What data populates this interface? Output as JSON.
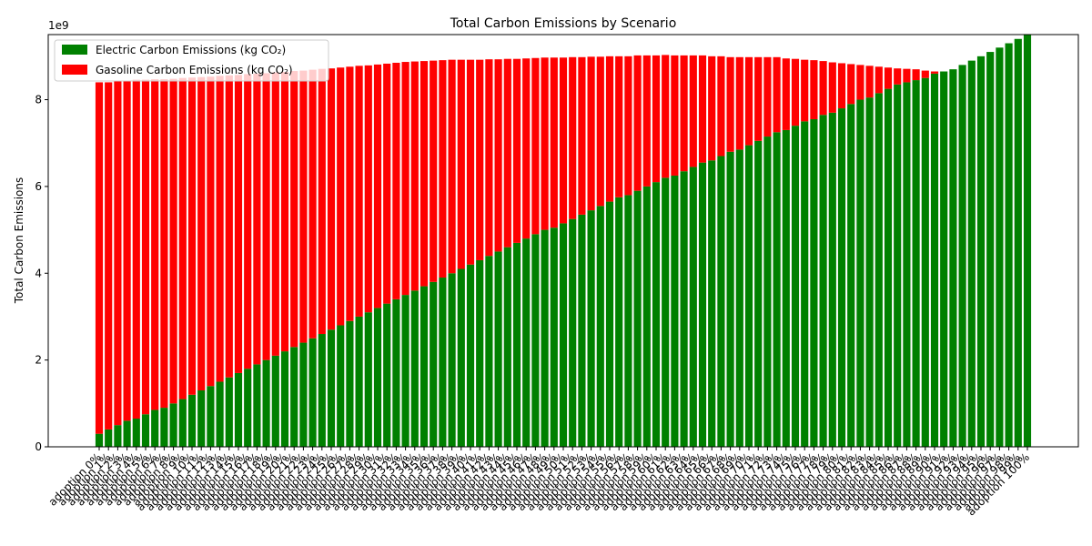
{
  "chart_data": {
    "type": "bar",
    "stacked": true,
    "title": "Total Carbon Emissions by Scenario",
    "xlabel": "",
    "ylabel": "Total Carbon Emissions",
    "y_offset_text": "1e9",
    "ylim": [
      0,
      9500000000
    ],
    "y_ticks": [
      0,
      2000000000,
      4000000000,
      6000000000,
      8000000000
    ],
    "y_tick_labels": [
      "0",
      "2",
      "4",
      "6",
      "8"
    ],
    "legend_position": "upper-left",
    "grid": false,
    "categories": [
      "adoption 0%",
      "adoption 1%",
      "adoption 2%",
      "adoption 3%",
      "adoption 4%",
      "adoption 5%",
      "adoption 6%",
      "adoption 7%",
      "adoption 8%",
      "adoption 9%",
      "adoption 10%",
      "adoption 11%",
      "adoption 12%",
      "adoption 13%",
      "adoption 14%",
      "adoption 15%",
      "adoption 16%",
      "adoption 17%",
      "adoption 18%",
      "adoption 19%",
      "adoption 20%",
      "adoption 21%",
      "adoption 22%",
      "adoption 23%",
      "adoption 24%",
      "adoption 25%",
      "adoption 26%",
      "adoption 27%",
      "adoption 28%",
      "adoption 29%",
      "adoption 30%",
      "adoption 31%",
      "adoption 32%",
      "adoption 33%",
      "adoption 34%",
      "adoption 35%",
      "adoption 36%",
      "adoption 37%",
      "adoption 38%",
      "adoption 39%",
      "adoption 40%",
      "adoption 41%",
      "adoption 42%",
      "adoption 43%",
      "adoption 44%",
      "adoption 45%",
      "adoption 46%",
      "adoption 47%",
      "adoption 48%",
      "adoption 49%",
      "adoption 50%",
      "adoption 51%",
      "adoption 52%",
      "adoption 53%",
      "adoption 54%",
      "adoption 55%",
      "adoption 56%",
      "adoption 57%",
      "adoption 58%",
      "adoption 59%",
      "adoption 60%",
      "adoption 61%",
      "adoption 62%",
      "adoption 63%",
      "adoption 64%",
      "adoption 65%",
      "adoption 66%",
      "adoption 67%",
      "adoption 68%",
      "adoption 69%",
      "adoption 70%",
      "adoption 71%",
      "adoption 72%",
      "adoption 73%",
      "adoption 74%",
      "adoption 75%",
      "adoption 76%",
      "adoption 77%",
      "adoption 78%",
      "adoption 79%",
      "adoption 80%",
      "adoption 81%",
      "adoption 82%",
      "adoption 83%",
      "adoption 84%",
      "adoption 85%",
      "adoption 86%",
      "adoption 87%",
      "adoption 88%",
      "adoption 89%",
      "adoption 90%",
      "adoption 91%",
      "adoption 92%",
      "adoption 93%",
      "adoption 94%",
      "adoption 95%",
      "adoption 96%",
      "adoption 97%",
      "adoption 98%",
      "adoption 99%",
      "adoption 100%"
    ],
    "series": [
      {
        "name": "Electric Carbon Emissions (kg CO₂)",
        "color": "#008000",
        "values": [
          300000000,
          400000000,
          500000000,
          600000000,
          650000000,
          750000000,
          850000000,
          900000000,
          1000000000,
          1100000000,
          1200000000,
          1300000000,
          1400000000,
          1500000000,
          1600000000,
          1700000000,
          1800000000,
          1900000000,
          2000000000,
          2100000000,
          2200000000,
          2300000000,
          2400000000,
          2500000000,
          2600000000,
          2700000000,
          2800000000,
          2900000000,
          3000000000,
          3100000000,
          3200000000,
          3300000000,
          3400000000,
          3500000000,
          3600000000,
          3700000000,
          3800000000,
          3900000000,
          4000000000,
          4100000000,
          4200000000,
          4300000000,
          4400000000,
          4500000000,
          4600000000,
          4700000000,
          4800000000,
          4900000000,
          5000000000,
          5050000000,
          5150000000,
          5250000000,
          5350000000,
          5450000000,
          5550000000,
          5650000000,
          5750000000,
          5800000000,
          5900000000,
          6000000000,
          6100000000,
          6200000000,
          6250000000,
          6350000000,
          6450000000,
          6550000000,
          6600000000,
          6700000000,
          6800000000,
          6850000000,
          6950000000,
          7050000000,
          7150000000,
          7250000000,
          7300000000,
          7400000000,
          7500000000,
          7550000000,
          7650000000,
          7700000000,
          7800000000,
          7900000000,
          8000000000,
          8050000000,
          8150000000,
          8250000000,
          8350000000,
          8400000000,
          8450000000,
          8500000000,
          8600000000,
          8650000000,
          8700000000,
          8800000000,
          8900000000,
          9000000000,
          9100000000,
          9200000000,
          9300000000,
          9400000000,
          9500000000
        ]
      },
      {
        "name": "Gasoline Carbon Emissions (kg CO₂)",
        "color": "#ff0000",
        "values": [
          8100000000,
          8000000000,
          7920000000,
          7840000000,
          7810000000,
          7710000000,
          7620000000,
          7570000000,
          7480000000,
          7400000000,
          7310000000,
          7220000000,
          7130000000,
          7050000000,
          6960000000,
          6870000000,
          6790000000,
          6700000000,
          6610000000,
          6530000000,
          6440000000,
          6360000000,
          6270000000,
          6190000000,
          6110000000,
          6020000000,
          5940000000,
          5860000000,
          5780000000,
          5690000000,
          5610000000,
          5530000000,
          5450000000,
          5370000000,
          5280000000,
          5190000000,
          5100000000,
          5010000000,
          4920000000,
          4820000000,
          4720000000,
          4620000000,
          4530000000,
          4430000000,
          4340000000,
          4240000000,
          4150000000,
          4060000000,
          3970000000,
          3920000000,
          3820000000,
          3730000000,
          3630000000,
          3540000000,
          3440000000,
          3350000000,
          3250000000,
          3200000000,
          3120000000,
          3020000000,
          2920000000,
          2830000000,
          2770000000,
          2670000000,
          2570000000,
          2470000000,
          2400000000,
          2300000000,
          2180000000,
          2130000000,
          2030000000,
          1930000000,
          1830000000,
          1730000000,
          1650000000,
          1540000000,
          1420000000,
          1360000000,
          1240000000,
          1160000000,
          1040000000,
          920000000,
          800000000,
          730000000,
          610000000,
          490000000,
          370000000,
          310000000,
          250000000,
          170000000,
          50000000,
          0,
          0,
          0,
          0,
          0,
          0,
          0,
          0,
          0,
          0
        ]
      }
    ]
  }
}
